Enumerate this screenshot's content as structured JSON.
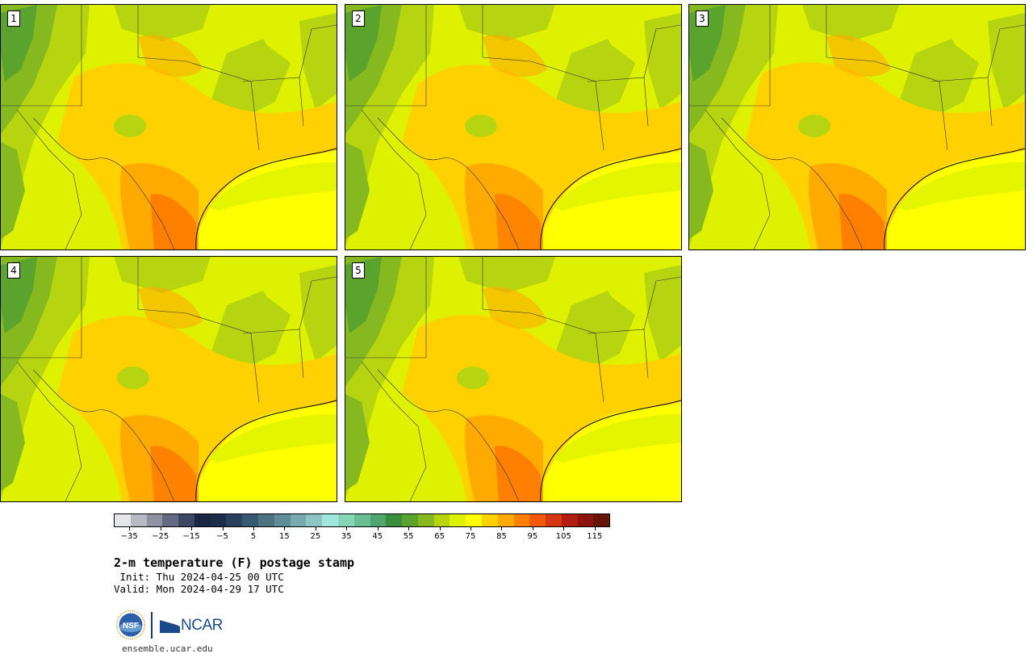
{
  "panels": [
    {
      "label": "1"
    },
    {
      "label": "2"
    },
    {
      "label": "3"
    },
    {
      "label": "4"
    },
    {
      "label": "5"
    }
  ],
  "colorbar": {
    "colors": [
      "#e4e6ea",
      "#b7bac4",
      "#8e93a3",
      "#626b82",
      "#3c4765",
      "#1b2742",
      "#1c2c4b",
      "#2a415e",
      "#365870",
      "#4d7281",
      "#5f8d97",
      "#76aaae",
      "#8cc5c3",
      "#a0e6dc",
      "#86d5b4",
      "#69bf94",
      "#4fa76f",
      "#3a8f3d",
      "#5aa32d",
      "#86b91f",
      "#b6d40f",
      "#def200",
      "#ffff00",
      "#ffd100",
      "#ffaa00",
      "#ff8000",
      "#f25a0a",
      "#d43711",
      "#b11e11",
      "#8c140d",
      "#661308"
    ],
    "ticks": [
      "−35",
      "−25",
      "−15",
      "−5",
      "5",
      "15",
      "25",
      "35",
      "45",
      "55",
      "65",
      "75",
      "85",
      "95",
      "105",
      "115"
    ],
    "tick_values": [
      -35,
      -25,
      -15,
      -5,
      5,
      15,
      25,
      35,
      45,
      55,
      65,
      75,
      85,
      95,
      105,
      115
    ],
    "min": -40,
    "max": 120
  },
  "title": "2-m temperature (F) postage stamp",
  "init": " Init: Thu 2024-04-25 00 UTC",
  "valid": "Valid: Mon 2024-04-29 17 UTC",
  "logos": {
    "ncar": "NCAR",
    "nsf": "NSF"
  },
  "site": "ensemble.ucar.edu"
}
